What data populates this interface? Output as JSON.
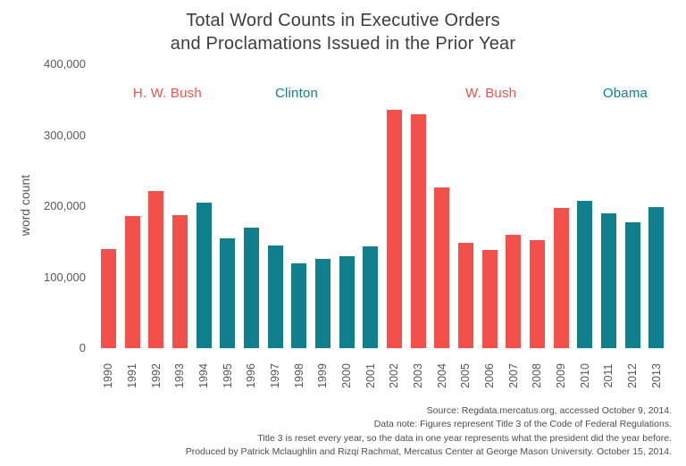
{
  "title": {
    "line1": "Total Word Counts in Executive Orders",
    "line2": "and Proclamations Issued in the Prior Year"
  },
  "ylabel": "word count",
  "colors": {
    "republican": "#f1514a",
    "democrat": "#117f8b",
    "title_text": "#3d3d3d",
    "axis_text": "#595959"
  },
  "era_labels": [
    {
      "label": "H. W. Bush",
      "party": "republican",
      "x_percent": 12.4
    },
    {
      "label": "Clinton",
      "party": "democrat",
      "x_percent": 35.0
    },
    {
      "label": "W. Bush",
      "party": "republican",
      "x_percent": 69.0
    },
    {
      "label": "Obama",
      "party": "democrat",
      "x_percent": 92.5
    }
  ],
  "chart_data": {
    "type": "bar",
    "title": "Total Word Counts in Executive Orders and Proclamations Issued in the Prior Year",
    "xlabel": "",
    "ylabel": "word count",
    "ylim": [
      0,
      400000
    ],
    "grid": false,
    "legend": "none",
    "ytick_labels": [
      "400,000",
      "300,000",
      "200,000",
      "100,000",
      "0"
    ],
    "categories": [
      "1990",
      "1991",
      "1992",
      "1993",
      "1994",
      "1995",
      "1996",
      "1997",
      "1998",
      "1999",
      "2000",
      "2001",
      "2002",
      "2003",
      "2004",
      "2005",
      "2006",
      "2007",
      "2008",
      "2009",
      "2010",
      "2011",
      "2012",
      "2013"
    ],
    "values": [
      140000,
      186000,
      222000,
      187000,
      205000,
      155000,
      170000,
      145000,
      120000,
      126000,
      129000,
      143000,
      336000,
      330000,
      227000,
      149000,
      138000,
      160000,
      152000,
      197000,
      207000,
      190000,
      177000,
      199000
    ],
    "parties": [
      "republican",
      "republican",
      "republican",
      "republican",
      "democrat",
      "democrat",
      "democrat",
      "democrat",
      "democrat",
      "democrat",
      "democrat",
      "democrat",
      "republican",
      "republican",
      "republican",
      "republican",
      "republican",
      "republican",
      "republican",
      "republican",
      "democrat",
      "democrat",
      "democrat",
      "democrat"
    ]
  },
  "footer": {
    "lines": [
      "Source: Regdata.mercatus.org, accessed October 9, 2014.",
      "Data note: Figures represent Title 3 of the Code of Federal Regulations.",
      "Title 3 is reset every year, so the data in one year represents what the president did the year before.",
      "Produced by Patrick Mclaughlin and Rizqi Rachmat, Mercatus Center at George Mason University. October 15, 2014."
    ]
  }
}
